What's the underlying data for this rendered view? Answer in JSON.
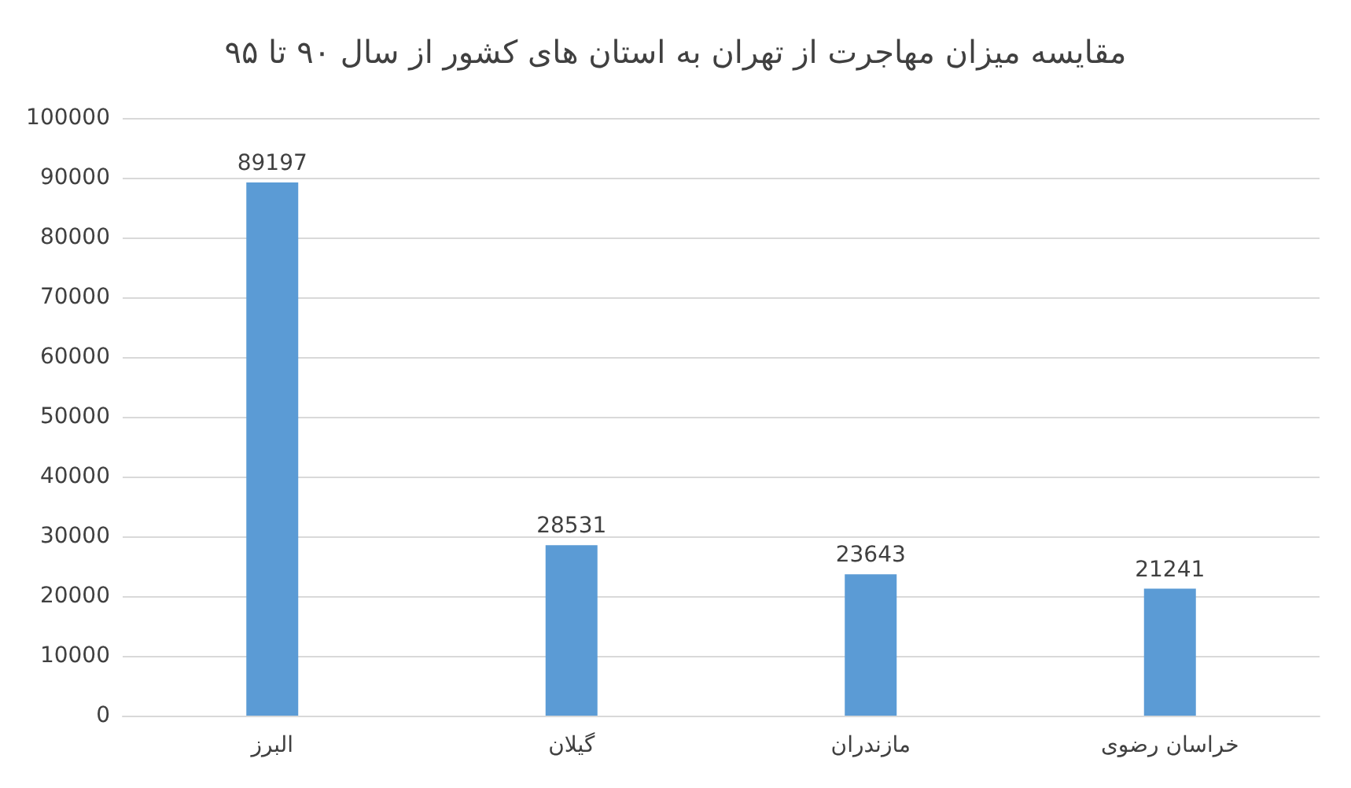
{
  "chart_data": {
    "type": "bar",
    "title": "مقایسه میزان مهاجرت از تهران به استان های کشور از سال ۹۰ تا ۹۵",
    "categories": [
      "البرز",
      "گیلان",
      "مازندران",
      "خراسان رضوی"
    ],
    "values": [
      89197,
      28531,
      23643,
      21241
    ],
    "color": "#5b9bd5",
    "ylim": [
      0,
      100000
    ],
    "yticks": [
      0,
      10000,
      20000,
      30000,
      40000,
      50000,
      60000,
      70000,
      80000,
      90000,
      100000
    ],
    "grid": "y",
    "data_labels": true
  }
}
